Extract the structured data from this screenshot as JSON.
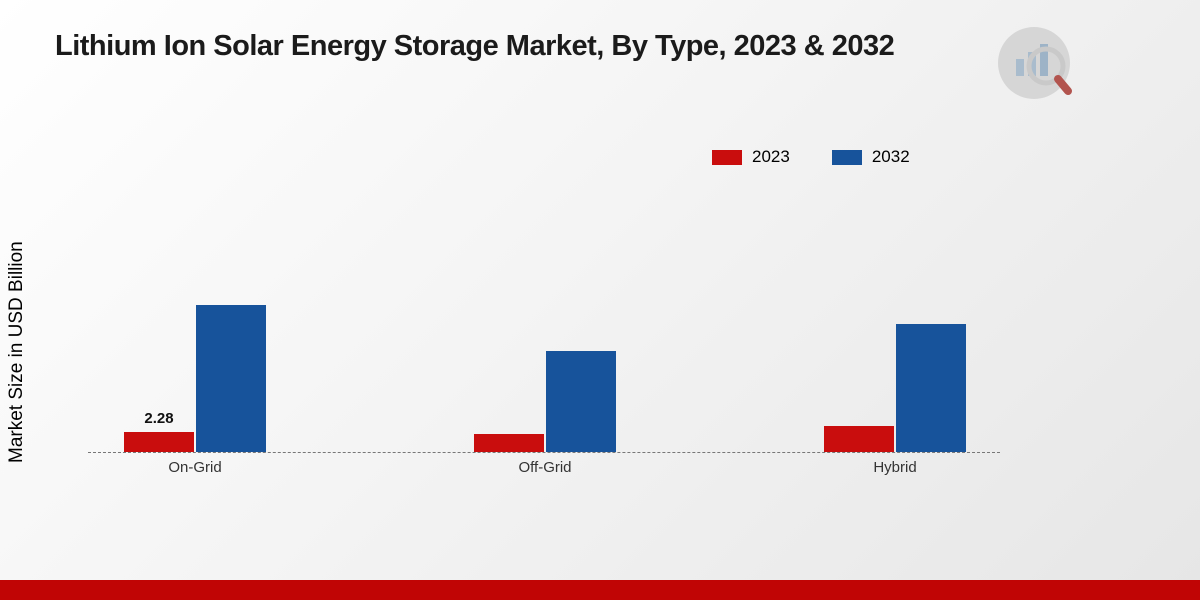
{
  "title": "Lithium Ion Solar Energy Storage Market, By Type, 2023 & 2032",
  "chart_data": {
    "type": "bar",
    "title": "Lithium Ion Solar Energy Storage Market, By Type, 2023 & 2032",
    "ylabel": "Market Size in USD Billion",
    "xlabel": "",
    "categories": [
      "On-Grid",
      "Off-Grid",
      "Hybrid"
    ],
    "series": [
      {
        "name": "2023",
        "color": "#c90d0d",
        "values": [
          2.28,
          2.05,
          2.95
        ],
        "value_labels": [
          "2.28",
          "",
          ""
        ]
      },
      {
        "name": "2032",
        "color": "#17539b",
        "values": [
          16.8,
          11.5,
          14.6
        ],
        "value_labels": [
          "",
          "",
          ""
        ]
      }
    ],
    "ylim": [
      0,
      18
    ],
    "grid": false,
    "baseline_style": "dashed",
    "legend_position": "top-right"
  },
  "footer": {
    "band_color": "#c00505"
  },
  "logo": {
    "name": "market-research-logo"
  }
}
